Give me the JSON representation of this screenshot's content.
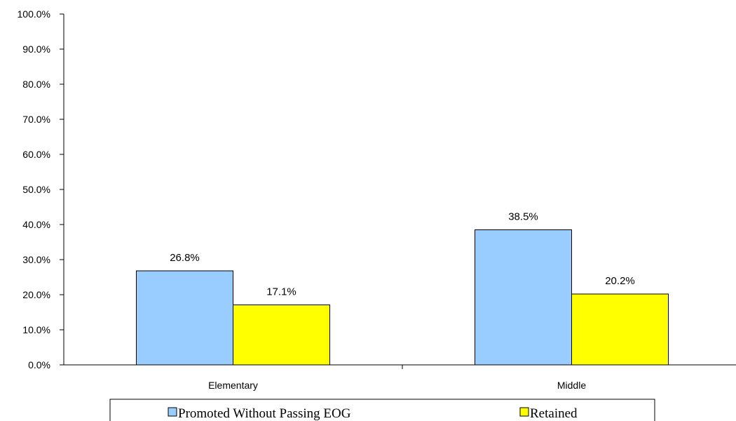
{
  "chart_data": {
    "type": "bar",
    "categories": [
      "Elementary",
      "Middle"
    ],
    "series": [
      {
        "name": "Promoted Without Passing EOG",
        "values": [
          26.8,
          38.5
        ],
        "labels": [
          "26.8%",
          "38.5%"
        ],
        "color": "#99ccff"
      },
      {
        "name": "Retained",
        "values": [
          17.1,
          20.2
        ],
        "labels": [
          "17.1%",
          "20.2%"
        ],
        "color": "#ffff00"
      }
    ],
    "yticks": [
      "0.0%",
      "10.0%",
      "20.0%",
      "30.0%",
      "40.0%",
      "50.0%",
      "60.0%",
      "70.0%",
      "80.0%",
      "90.0%",
      "100.0%"
    ],
    "ylim": [
      0,
      100
    ],
    "grid": false,
    "legend_position": "bottom"
  }
}
